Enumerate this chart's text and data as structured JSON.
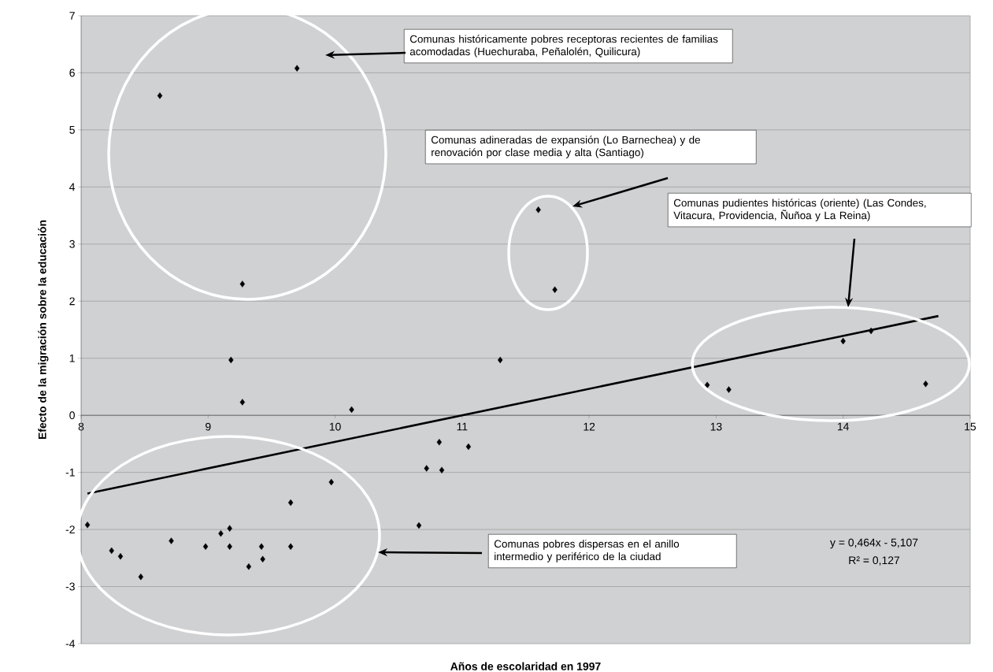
{
  "chart_data": {
    "type": "scatter",
    "xlabel": "Años de escolaridad en 1997",
    "ylabel": "Efecto de la migración sobre la educación",
    "xlim": [
      8,
      15
    ],
    "ylim": [
      -4,
      7
    ],
    "xticks": [
      8,
      9,
      10,
      11,
      12,
      13,
      14,
      15
    ],
    "yticks": [
      -4,
      -3,
      -2,
      -1,
      0,
      1,
      2,
      3,
      4,
      5,
      6,
      7
    ],
    "grid": "y",
    "marker": "diamond",
    "series": [
      {
        "color": "#000000",
        "x": [
          8.62,
          9.7,
          9.27,
          9.18,
          9.27,
          10.13,
          11.3,
          11.6,
          11.73,
          12.93,
          13.1,
          14.0,
          14.22,
          14.65,
          8.05,
          8.24,
          8.31,
          8.47,
          8.71,
          8.98,
          9.1,
          9.17,
          9.17,
          9.32,
          9.42,
          9.43,
          9.65,
          9.65,
          9.97,
          10.66,
          10.72,
          10.82,
          10.84,
          11.05
        ],
        "values": [
          5.6,
          6.08,
          2.3,
          0.97,
          0.23,
          0.1,
          0.97,
          3.6,
          2.2,
          0.53,
          0.45,
          1.3,
          1.48,
          0.55,
          -1.92,
          -2.37,
          -2.47,
          -2.83,
          -2.2,
          -2.3,
          -2.07,
          -1.98,
          -2.3,
          -2.65,
          -2.3,
          -2.52,
          -1.53,
          -2.3,
          -1.17,
          -1.93,
          -0.93,
          -0.47,
          -0.96,
          -0.55
        ]
      },
      {
        "type": "line",
        "color": "#000000",
        "marker": "none",
        "x": [
          8.05,
          14.75
        ],
        "values": [
          -1.37,
          1.74
        ]
      }
    ],
    "annotations": [
      "Comunas históricamente pobres receptoras recientes de familias acomodadas (Huechuraba, Peñalolén, Quilicura)",
      "Comunas adineradas de expansión (Lo Barnechea) y de renovación por clase media y alta (Santiago)",
      "Comunas pudientes históricas (oriente) (Las Condes, Vitacura, Providencia, Ñuñoa y La Reina)",
      "Comunas pobres dispersas en el anillo intermedio y periférico de la ciudad",
      "y = 0,464x - 5,107",
      "R² = 0,127"
    ]
  }
}
